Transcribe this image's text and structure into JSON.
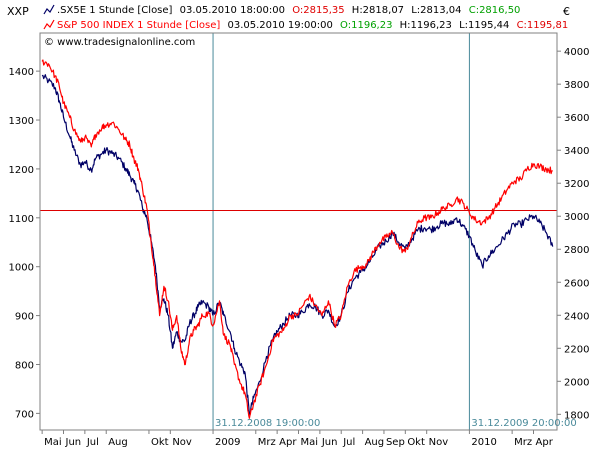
{
  "window": {
    "left_axis_label": "XXP",
    "right_axis_label": "€"
  },
  "legend": [
    {
      "name": ".SX5E 1 Stunde [Close]",
      "timestamp": "03.05.2010 18:00:00",
      "open": "O:2815,35",
      "high": "H:2818,07",
      "low": "L:2813,04",
      "close": "C:2816,50",
      "open_color": "#e00000",
      "close_color": "#00a000",
      "line_color": "#000066"
    },
    {
      "name": "S&P 500 INDEX 1 Stunde [Close]",
      "timestamp": "03.05.2010 19:00:00",
      "open": "O:1196,23",
      "high": "H:1196,23",
      "low": "L:1195,44",
      "close": "C:1195,81",
      "open_color": "#00a000",
      "close_color": "#e00000",
      "line_color": "#ff0000"
    }
  ],
  "watermark": "© www.tradesignalonline.com",
  "markers": [
    {
      "label": "31.12.2008 19:00:00",
      "t": 8
    },
    {
      "label": "31.12.2009 20:00:00",
      "t": 20
    }
  ],
  "horizontal_line": {
    "value": 1115,
    "color": "#dd0000"
  },
  "chart_data": {
    "type": "line",
    "x_unit": "months since 2008-04-30 (axis labels are month names)",
    "x_labels": [
      {
        "t": 0,
        "label": "Mai"
      },
      {
        "t": 1,
        "label": "Jun"
      },
      {
        "t": 2,
        "label": "Jul"
      },
      {
        "t": 3,
        "label": "Aug"
      },
      {
        "t": 5,
        "label": "Okt"
      },
      {
        "t": 6,
        "label": "Nov"
      },
      {
        "t": 8,
        "label": "2009"
      },
      {
        "t": 10,
        "label": "Mrz"
      },
      {
        "t": 11,
        "label": "Apr"
      },
      {
        "t": 12,
        "label": "Mai"
      },
      {
        "t": 13,
        "label": "Jun"
      },
      {
        "t": 14,
        "label": "Jul"
      },
      {
        "t": 15,
        "label": "Aug"
      },
      {
        "t": 16,
        "label": "Sep"
      },
      {
        "t": 17,
        "label": "Okt"
      },
      {
        "t": 18,
        "label": "Nov"
      },
      {
        "t": 20,
        "label": "2010"
      },
      {
        "t": 22,
        "label": "Mrz"
      },
      {
        "t": 23,
        "label": "Apr"
      }
    ],
    "xlim": [
      -0.1,
      24.1
    ],
    "y_left": {
      "ticks": [
        700,
        800,
        900,
        1000,
        1100,
        1200,
        1300,
        1400
      ],
      "ylim": [
        666,
        1478
      ]
    },
    "y_right": {
      "ticks": [
        1800,
        2000,
        2200,
        2400,
        2600,
        2800,
        3000,
        3200,
        3400,
        3600,
        3800,
        4000
      ],
      "ylim": [
        1705,
        4110
      ]
    },
    "series": [
      {
        "name": "S&P 500 INDEX 1 Stunde [Close]",
        "axis": "left",
        "color": "#ff0000",
        "points": [
          [
            0,
            1420
          ],
          [
            0.3,
            1415
          ],
          [
            0.6,
            1390
          ],
          [
            0.8,
            1370
          ],
          [
            1,
            1335
          ],
          [
            1.3,
            1305
          ],
          [
            1.5,
            1280
          ],
          [
            1.8,
            1255
          ],
          [
            2,
            1265
          ],
          [
            2.3,
            1245
          ],
          [
            2.5,
            1270
          ],
          [
            2.8,
            1285
          ],
          [
            3,
            1290
          ],
          [
            3.3,
            1295
          ],
          [
            3.6,
            1280
          ],
          [
            3.9,
            1260
          ],
          [
            4.1,
            1250
          ],
          [
            4.3,
            1220
          ],
          [
            4.5,
            1200
          ],
          [
            4.7,
            1160
          ],
          [
            4.9,
            1120
          ],
          [
            5.1,
            1050
          ],
          [
            5.3,
            980
          ],
          [
            5.5,
            900
          ],
          [
            5.7,
            960
          ],
          [
            5.9,
            930
          ],
          [
            6.1,
            870
          ],
          [
            6.3,
            900
          ],
          [
            6.5,
            830
          ],
          [
            6.7,
            800
          ],
          [
            6.9,
            850
          ],
          [
            7.1,
            870
          ],
          [
            7.3,
            880
          ],
          [
            7.5,
            900
          ],
          [
            7.8,
            905
          ],
          [
            8,
            880
          ],
          [
            8.3,
            930
          ],
          [
            8.5,
            860
          ],
          [
            8.8,
            840
          ],
          [
            9,
            800
          ],
          [
            9.3,
            760
          ],
          [
            9.5,
            740
          ],
          [
            9.7,
            690
          ],
          [
            9.9,
            720
          ],
          [
            10.2,
            760
          ],
          [
            10.5,
            800
          ],
          [
            10.8,
            850
          ],
          [
            11,
            860
          ],
          [
            11.3,
            870
          ],
          [
            11.6,
            900
          ],
          [
            11.9,
            900
          ],
          [
            12.2,
            920
          ],
          [
            12.5,
            940
          ],
          [
            12.8,
            920
          ],
          [
            13.1,
            900
          ],
          [
            13.4,
            930
          ],
          [
            13.7,
            880
          ],
          [
            14,
            900
          ],
          [
            14.3,
            960
          ],
          [
            14.6,
            990
          ],
          [
            14.9,
            1000
          ],
          [
            15.2,
            1005
          ],
          [
            15.5,
            1030
          ],
          [
            15.8,
            1050
          ],
          [
            16.1,
            1060
          ],
          [
            16.4,
            1070
          ],
          [
            16.7,
            1040
          ],
          [
            17,
            1030
          ],
          [
            17.3,
            1060
          ],
          [
            17.6,
            1090
          ],
          [
            17.9,
            1100
          ],
          [
            18.2,
            1100
          ],
          [
            18.5,
            1110
          ],
          [
            18.8,
            1120
          ],
          [
            19.1,
            1125
          ],
          [
            19.4,
            1140
          ],
          [
            19.7,
            1130
          ],
          [
            20,
            1110
          ],
          [
            20.3,
            1095
          ],
          [
            20.6,
            1090
          ],
          [
            20.9,
            1100
          ],
          [
            21.2,
            1120
          ],
          [
            21.5,
            1140
          ],
          [
            21.8,
            1160
          ],
          [
            22.1,
            1175
          ],
          [
            22.4,
            1180
          ],
          [
            22.7,
            1200
          ],
          [
            23,
            1210
          ],
          [
            23.3,
            1205
          ],
          [
            23.6,
            1200
          ],
          [
            23.9,
            1196
          ]
        ]
      },
      {
        "name": ".SX5E 1 Stunde [Close]",
        "axis": "right",
        "color": "#000066",
        "points": [
          [
            0,
            3850
          ],
          [
            0.3,
            3820
          ],
          [
            0.6,
            3780
          ],
          [
            0.8,
            3700
          ],
          [
            1,
            3600
          ],
          [
            1.3,
            3480
          ],
          [
            1.5,
            3400
          ],
          [
            1.8,
            3310
          ],
          [
            2,
            3330
          ],
          [
            2.3,
            3280
          ],
          [
            2.5,
            3350
          ],
          [
            2.8,
            3380
          ],
          [
            3,
            3400
          ],
          [
            3.3,
            3380
          ],
          [
            3.6,
            3350
          ],
          [
            3.9,
            3290
          ],
          [
            4.1,
            3250
          ],
          [
            4.3,
            3200
          ],
          [
            4.5,
            3150
          ],
          [
            4.7,
            3050
          ],
          [
            4.9,
            2990
          ],
          [
            5.1,
            2850
          ],
          [
            5.3,
            2700
          ],
          [
            5.5,
            2450
          ],
          [
            5.7,
            2500
          ],
          [
            5.9,
            2400
          ],
          [
            6.1,
            2200
          ],
          [
            6.3,
            2300
          ],
          [
            6.5,
            2240
          ],
          [
            6.7,
            2250
          ],
          [
            6.9,
            2350
          ],
          [
            7.1,
            2400
          ],
          [
            7.3,
            2450
          ],
          [
            7.5,
            2480
          ],
          [
            7.8,
            2450
          ],
          [
            8,
            2400
          ],
          [
            8.3,
            2480
          ],
          [
            8.5,
            2400
          ],
          [
            8.8,
            2300
          ],
          [
            9,
            2200
          ],
          [
            9.3,
            2100
          ],
          [
            9.5,
            2050
          ],
          [
            9.7,
            1800
          ],
          [
            9.9,
            1900
          ],
          [
            10.2,
            2000
          ],
          [
            10.5,
            2150
          ],
          [
            10.8,
            2250
          ],
          [
            11,
            2300
          ],
          [
            11.3,
            2350
          ],
          [
            11.6,
            2400
          ],
          [
            11.9,
            2400
          ],
          [
            12.2,
            2420
          ],
          [
            12.5,
            2470
          ],
          [
            12.8,
            2450
          ],
          [
            13.1,
            2400
          ],
          [
            13.4,
            2430
          ],
          [
            13.7,
            2330
          ],
          [
            14,
            2400
          ],
          [
            14.3,
            2540
          ],
          [
            14.6,
            2620
          ],
          [
            14.9,
            2660
          ],
          [
            15.2,
            2700
          ],
          [
            15.5,
            2760
          ],
          [
            15.8,
            2820
          ],
          [
            16.1,
            2850
          ],
          [
            16.4,
            2900
          ],
          [
            16.7,
            2840
          ],
          [
            17,
            2800
          ],
          [
            17.3,
            2860
          ],
          [
            17.6,
            2920
          ],
          [
            17.9,
            2930
          ],
          [
            18.2,
            2920
          ],
          [
            18.5,
            2940
          ],
          [
            18.8,
            2960
          ],
          [
            19.1,
            2950
          ],
          [
            19.4,
            2990
          ],
          [
            19.7,
            2940
          ],
          [
            20,
            2880
          ],
          [
            20.3,
            2780
          ],
          [
            20.6,
            2700
          ],
          [
            20.9,
            2760
          ],
          [
            21.2,
            2800
          ],
          [
            21.5,
            2850
          ],
          [
            21.8,
            2900
          ],
          [
            22.1,
            2950
          ],
          [
            22.4,
            2950
          ],
          [
            22.7,
            2980
          ],
          [
            23,
            3000
          ],
          [
            23.3,
            2960
          ],
          [
            23.6,
            2900
          ],
          [
            23.9,
            2816
          ]
        ]
      }
    ]
  }
}
